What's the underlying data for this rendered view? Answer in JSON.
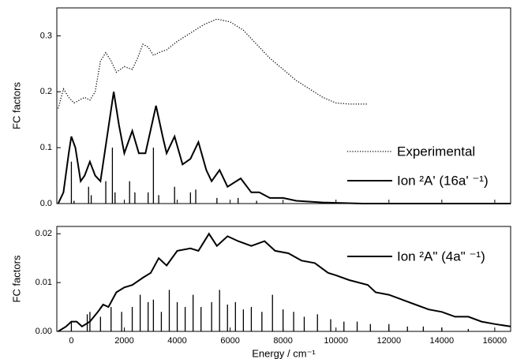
{
  "chart_data": [
    {
      "type": "line",
      "ylabel": "FC factors",
      "xlim": [
        -550,
        16600
      ],
      "ylim": [
        0,
        0.35
      ],
      "yticks": [
        {
          "value": 0,
          "label": "0.0"
        },
        0.1,
        0.2,
        0.3
      ],
      "series": [
        {
          "name": "Experimental",
          "color": "#000000",
          "style": "dotted",
          "x": [
            -500,
            -300,
            -100,
            100,
            300,
            500,
            700,
            900,
            1100,
            1300,
            1500,
            1700,
            2000,
            2300,
            2500,
            2700,
            2900,
            3100,
            3300,
            3600,
            4000,
            4500,
            5000,
            5500,
            6000,
            6500,
            7000,
            7500,
            8000,
            8500,
            9000,
            9500,
            10000,
            10500,
            11200
          ],
          "values": [
            0.17,
            0.205,
            0.19,
            0.18,
            0.185,
            0.19,
            0.185,
            0.2,
            0.255,
            0.27,
            0.255,
            0.235,
            0.245,
            0.24,
            0.26,
            0.285,
            0.28,
            0.265,
            0.27,
            0.275,
            0.29,
            0.305,
            0.32,
            0.33,
            0.325,
            0.31,
            0.285,
            0.26,
            0.24,
            0.22,
            0.205,
            0.19,
            0.18,
            0.178,
            0.178
          ]
        },
        {
          "name": "Ion ²A' (16a' ⁻¹)",
          "color": "#000000",
          "style": "solid",
          "x": [
            -500,
            -300,
            -100,
            0,
            150,
            350,
            500,
            700,
            900,
            1100,
            1350,
            1600,
            1800,
            2000,
            2300,
            2550,
            2800,
            3200,
            3450,
            3600,
            3900,
            4200,
            4500,
            4800,
            5100,
            5300,
            5600,
            5900,
            6400,
            6800,
            7100,
            7500,
            8000,
            8500,
            9500,
            11000,
            16600
          ],
          "values": [
            0,
            0.02,
            0.09,
            0.12,
            0.1,
            0.04,
            0.05,
            0.075,
            0.05,
            0.04,
            0.12,
            0.2,
            0.14,
            0.09,
            0.13,
            0.09,
            0.09,
            0.175,
            0.12,
            0.09,
            0.12,
            0.07,
            0.08,
            0.11,
            0.06,
            0.04,
            0.06,
            0.03,
            0.045,
            0.02,
            0.02,
            0.01,
            0.01,
            0.005,
            0.002,
            0,
            0
          ]
        }
      ],
      "sticks": {
        "color": "#000000",
        "x": [
          0,
          100,
          650,
          750,
          1300,
          1550,
          1650,
          2200,
          2400,
          2900,
          3100,
          3300,
          3900,
          4500,
          4700,
          5500,
          6300,
          7000
        ],
        "values": [
          0.075,
          0.005,
          0.03,
          0.015,
          0.04,
          0.1,
          0.02,
          0.04,
          0.02,
          0.02,
          0.1,
          0.015,
          0.03,
          0.02,
          0.025,
          0.01,
          0.01,
          0.005
        ]
      }
    },
    {
      "type": "line",
      "ylabel": "FC factors",
      "xlabel": "Energy / cm⁻¹",
      "xlim": [
        -550,
        16600
      ],
      "xticks": [
        0,
        2000,
        4000,
        6000,
        8000,
        10000,
        12000,
        14000,
        16000
      ],
      "ylim": [
        0,
        0.0215
      ],
      "yticks": [
        {
          "value": 0,
          "label": "0.00"
        },
        0.01,
        0.02
      ],
      "series": [
        {
          "name": "Ion ²A\" (4a\" ⁻¹)",
          "color": "#000000",
          "style": "solid",
          "x": [
            -500,
            -200,
            0,
            200,
            400,
            700,
            1000,
            1200,
            1400,
            1700,
            2000,
            2300,
            2700,
            3000,
            3300,
            3600,
            4000,
            4500,
            4800,
            5200,
            5500,
            5900,
            6300,
            6800,
            7300,
            7700,
            8200,
            8700,
            9200,
            9700,
            10000,
            10500,
            11200,
            11500,
            12000,
            12500,
            13000,
            13500,
            14000,
            14500,
            15000,
            15500,
            16000,
            16600
          ],
          "values": [
            0,
            0.001,
            0.002,
            0.002,
            0.001,
            0.002,
            0.004,
            0.0055,
            0.005,
            0.008,
            0.009,
            0.0095,
            0.011,
            0.012,
            0.015,
            0.0135,
            0.0165,
            0.017,
            0.0165,
            0.02,
            0.0175,
            0.0195,
            0.0185,
            0.0175,
            0.0185,
            0.0165,
            0.016,
            0.0145,
            0.014,
            0.012,
            0.0115,
            0.0105,
            0.0095,
            0.008,
            0.0075,
            0.0065,
            0.0055,
            0.0045,
            0.004,
            0.003,
            0.003,
            0.002,
            0.0015,
            0.001
          ]
        }
      ],
      "sticks": {
        "color": "#000000",
        "x": [
          0,
          600,
          700,
          1100,
          1500,
          1900,
          2300,
          2600,
          2900,
          3100,
          3400,
          3700,
          4000,
          4300,
          4600,
          4900,
          5300,
          5600,
          5900,
          6200,
          6500,
          6800,
          7200,
          7600,
          8000,
          8400,
          8800,
          9300,
          9800,
          10300,
          10800,
          11300,
          12000,
          12700,
          13300,
          14000,
          15000
        ],
        "values": [
          0.002,
          0.0035,
          0.004,
          0.003,
          0.005,
          0.004,
          0.005,
          0.0075,
          0.006,
          0.0065,
          0.004,
          0.0085,
          0.006,
          0.005,
          0.0075,
          0.005,
          0.006,
          0.0085,
          0.0055,
          0.006,
          0.0045,
          0.005,
          0.004,
          0.0075,
          0.0045,
          0.004,
          0.003,
          0.0035,
          0.0025,
          0.002,
          0.002,
          0.0015,
          0.0015,
          0.001,
          0.001,
          0.0008,
          0.0005
        ]
      }
    }
  ]
}
